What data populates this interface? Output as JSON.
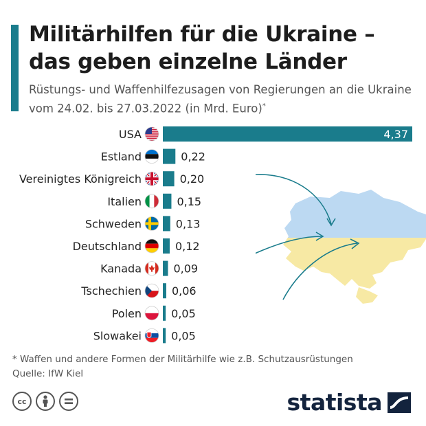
{
  "header": {
    "title": "Militärhilfen für die Ukraine – das geben einzelne Länder",
    "subtitle": "Rüstungs- und Waffenhilfezusagen von Regierungen an die Ukraine vom 24.02. bis 27.03.2022 (in Mrd. Euro)",
    "subtitle_mark": "*"
  },
  "chart_data": {
    "type": "bar",
    "orientation": "horizontal",
    "categories": [
      "USA",
      "Estland",
      "Vereinigtes Königreich",
      "Italien",
      "Schweden",
      "Deutschland",
      "Kanada",
      "Tschechien",
      "Polen",
      "Slowakei"
    ],
    "values": [
      4.37,
      0.22,
      0.2,
      0.15,
      0.13,
      0.12,
      0.09,
      0.06,
      0.05,
      0.05
    ],
    "value_labels": [
      "4,37",
      "0,22",
      "0,20",
      "0,15",
      "0,13",
      "0,12",
      "0,09",
      "0,06",
      "0,05",
      "0,05"
    ],
    "flag_icons": [
      "us-flag-icon",
      "ee-flag-icon",
      "gb-flag-icon",
      "it-flag-icon",
      "se-flag-icon",
      "de-flag-icon",
      "ca-flag-icon",
      "cz-flag-icon",
      "pl-flag-icon",
      "sk-flag-icon"
    ],
    "xlim": [
      0,
      4.37
    ],
    "grid": false,
    "legend": "none",
    "bar_color": "#1a7c8c"
  },
  "footer": {
    "footnote": "* Waffen und andere Formen der Militärhilfe wie z.B. Schutzausrüstungen",
    "source": "Quelle: IfW Kiel",
    "license_icons": [
      "cc-icon",
      "by-icon",
      "nd-icon"
    ],
    "brand": "statista"
  },
  "colors": {
    "accent": "#1a7c8c",
    "map_top": "#bcd9f2",
    "map_bottom": "#f7e9a4",
    "arrow": "#1a7c8c",
    "brand": "#13233d"
  }
}
